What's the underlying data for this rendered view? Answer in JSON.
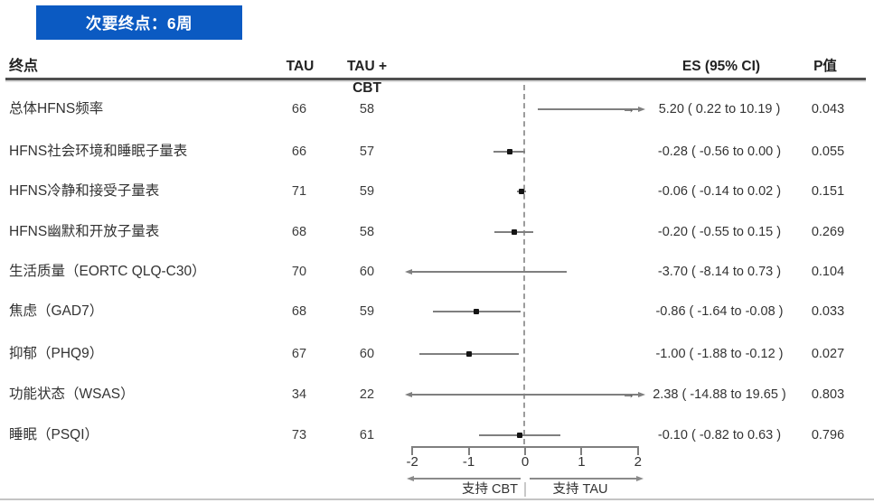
{
  "title": "次要终点：6周",
  "headers": {
    "endpoint": "终点",
    "tau": "TAU",
    "tau_cbt": "TAU + CBT",
    "es": "ES (95% CI)",
    "p": "P值"
  },
  "chart_data": {
    "type": "forest",
    "title": "次要终点：6周",
    "x_axis": {
      "range": [
        -2,
        2
      ],
      "ticks": [
        -2,
        -1,
        0,
        1,
        2
      ],
      "zero_reference_line": 0,
      "left_direction_label": "支持 CBT",
      "right_direction_label": "支持 TAU"
    },
    "rows": [
      {
        "endpoint": "总体HFNS频率",
        "tau": "66",
        "tau_cbt": "58",
        "es": 5.2,
        "ci_low": 0.22,
        "ci_high": 10.19,
        "es_text": "5.20 ( 0.22 to 10.19 )",
        "p": "0.043",
        "offscale_arrow": "→"
      },
      {
        "endpoint": "HFNS社会环境和睡眠子量表",
        "tau": "66",
        "tau_cbt": "57",
        "es": -0.28,
        "ci_low": -0.56,
        "ci_high": 0.0,
        "es_text": "-0.28 ( -0.56 to 0.00 )",
        "p": "0.055",
        "offscale_arrow": ""
      },
      {
        "endpoint": "HFNS冷静和接受子量表",
        "tau": "71",
        "tau_cbt": "59",
        "es": -0.06,
        "ci_low": -0.14,
        "ci_high": 0.02,
        "es_text": "-0.06 ( -0.14 to 0.02 )",
        "p": "0.151",
        "offscale_arrow": ""
      },
      {
        "endpoint": "HFNS幽默和开放子量表",
        "tau": "68",
        "tau_cbt": "58",
        "es": -0.2,
        "ci_low": -0.55,
        "ci_high": 0.15,
        "es_text": "-0.20 ( -0.55 to 0.15 )",
        "p": "0.269",
        "offscale_arrow": ""
      },
      {
        "endpoint": "生活质量（EORTC QLQ-C30）",
        "tau": "70",
        "tau_cbt": "60",
        "es": -3.7,
        "ci_low": -8.14,
        "ci_high": 0.73,
        "es_text": "-3.70 ( -8.14 to 0.73 )",
        "p": "0.104",
        "offscale_arrow": ""
      },
      {
        "endpoint": "焦虑（GAD7）",
        "tau": "68",
        "tau_cbt": "59",
        "es": -0.86,
        "ci_low": -1.64,
        "ci_high": -0.08,
        "es_text": "-0.86 ( -1.64 to -0.08 )",
        "p": "0.033",
        "offscale_arrow": ""
      },
      {
        "endpoint": "抑郁（PHQ9）",
        "tau": "67",
        "tau_cbt": "60",
        "es": -1.0,
        "ci_low": -1.88,
        "ci_high": -0.12,
        "es_text": "-1.00 ( -1.88 to -0.12 )",
        "p": "0.027",
        "offscale_arrow": ""
      },
      {
        "endpoint": "功能状态（WSAS）",
        "tau": "34",
        "tau_cbt": "22",
        "es": 2.38,
        "ci_low": -14.88,
        "ci_high": 19.65,
        "es_text": "2.38 ( -14.88 to 19.65 )",
        "p": "0.803",
        "offscale_arrow": "→"
      },
      {
        "endpoint": "睡眠（PSQI）",
        "tau": "73",
        "tau_cbt": "61",
        "es": -0.1,
        "ci_low": -0.82,
        "ci_high": 0.63,
        "es_text": "-0.10 ( -0.82 to 0.63 )",
        "p": "0.796",
        "offscale_arrow": ""
      }
    ]
  },
  "colors": {
    "banner_blue": "#0B5AC2",
    "text": "#333333",
    "plot_line_grey": "#7f7f7f"
  }
}
